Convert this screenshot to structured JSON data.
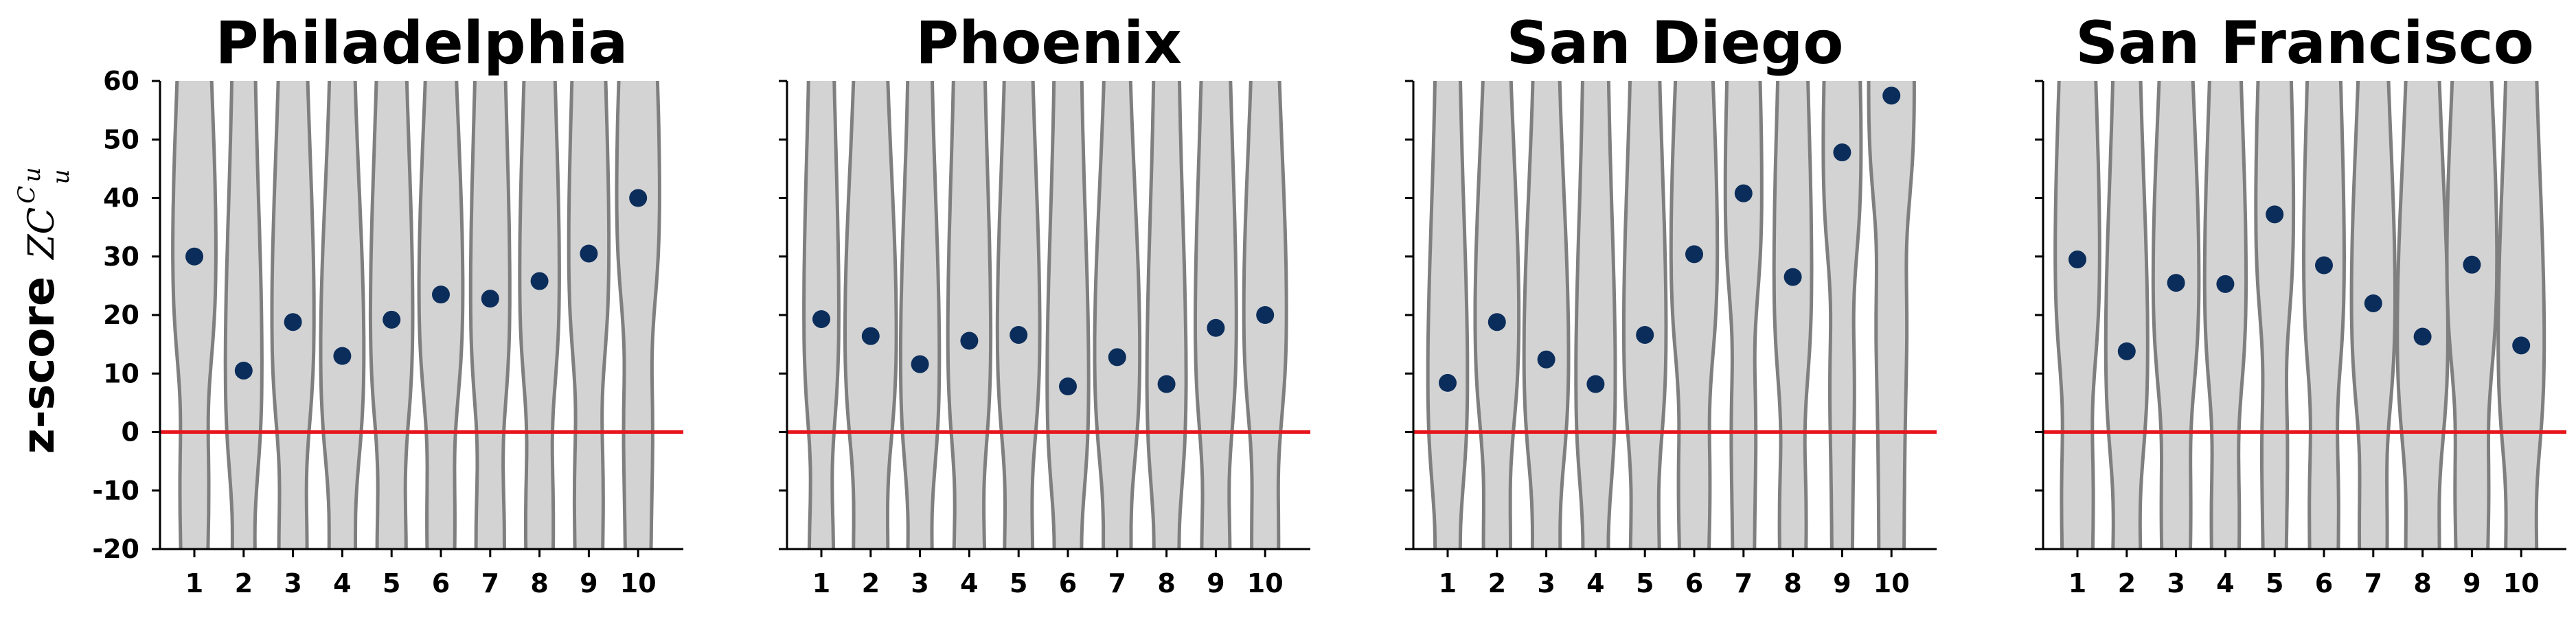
{
  "figure": {
    "ylabel_main": "z-score",
    "ylabel_symbol": "ZC",
    "ylabel_sup": "C",
    "ylabel_sup_sub": "u",
    "ylabel_sub": "u"
  },
  "chart_data": [
    {
      "type": "violin-scatter",
      "title": "Philadelphia",
      "categories": [
        "1",
        "2",
        "3",
        "4",
        "5",
        "6",
        "7",
        "8",
        "9",
        "10"
      ],
      "values": [
        30,
        10.5,
        18.8,
        13,
        19.2,
        23.5,
        22.8,
        25.8,
        30.5,
        40
      ],
      "ylim": [
        -20,
        60
      ],
      "yticks": [
        60,
        50,
        40,
        30,
        20,
        10,
        0,
        -10,
        -20
      ],
      "reference_line": 0
    },
    {
      "type": "violin-scatter",
      "title": "Phoenix",
      "categories": [
        "1",
        "2",
        "3",
        "4",
        "5",
        "6",
        "7",
        "8",
        "9",
        "10"
      ],
      "values": [
        19.3,
        16.4,
        11.6,
        15.6,
        16.6,
        7.8,
        12.8,
        8.2,
        17.8,
        20
      ],
      "ylim": [
        -20,
        60
      ],
      "yticks": [
        60,
        50,
        40,
        30,
        20,
        10,
        0,
        -10,
        -20
      ],
      "reference_line": 0
    },
    {
      "type": "violin-scatter",
      "title": "San Diego",
      "categories": [
        "1",
        "2",
        "3",
        "4",
        "5",
        "6",
        "7",
        "8",
        "9",
        "10"
      ],
      "values": [
        8.4,
        18.8,
        12.4,
        8.2,
        16.6,
        30.4,
        40.8,
        26.5,
        47.8,
        57.5
      ],
      "ylim": [
        -20,
        60
      ],
      "yticks": [
        60,
        50,
        40,
        30,
        20,
        10,
        0,
        -10,
        -20
      ],
      "reference_line": 0
    },
    {
      "type": "violin-scatter",
      "title": "San Francisco",
      "categories": [
        "1",
        "2",
        "3",
        "4",
        "5",
        "6",
        "7",
        "8",
        "9",
        "10"
      ],
      "values": [
        29.5,
        13.8,
        25.5,
        25.3,
        37.2,
        28.5,
        22,
        16.3,
        28.6,
        14.8
      ],
      "ylim": [
        -20,
        60
      ],
      "yticks": [
        60,
        50,
        40,
        30,
        20,
        10,
        0,
        -10,
        -20
      ],
      "reference_line": 0
    }
  ],
  "colors": {
    "violin_fill": "#d3d3d3",
    "violin_edge": "#7f7f7f",
    "point": "#0b2d5b",
    "zero_line": "#e8141b",
    "axis": "#000000"
  }
}
